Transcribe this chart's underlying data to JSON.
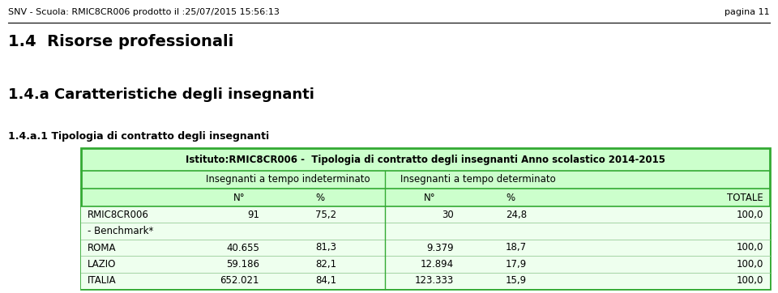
{
  "header_line": "SNV - Scuola: RMIC8CR006 prodotto il :25/07/2015 15:56:13",
  "page_label": "pagina 11",
  "section_title": "1.4  Risorse professionali",
  "subsection_title": "1.4.a Caratteristiche degli insegnanti",
  "sub_subsection_title": "1.4.a.1 Tipologia di contratto degli insegnanti",
  "table_title": "Istituto:RMIC8CR006 -  Tipologia di contratto degli insegnanti Anno scolastico 2014-2015",
  "col_group1": "Insegnanti a tempo indeterminato",
  "col_group2": "Insegnanti a tempo determinato",
  "col_headers": [
    "N°",
    "%",
    "N°",
    "%",
    "TOTALE"
  ],
  "rows": [
    {
      "label": "RMIC8CR006",
      "vals": [
        "91",
        "75,2",
        "30",
        "24,8",
        "100,0"
      ]
    },
    {
      "label": "- Benchmark*",
      "vals": [
        "",
        "",
        "",
        "",
        ""
      ]
    },
    {
      "label": "ROMA",
      "vals": [
        "40.655",
        "81,3",
        "9.379",
        "18,7",
        "100,0"
      ]
    },
    {
      "label": "LAZIO",
      "vals": [
        "59.186",
        "82,1",
        "12.894",
        "17,9",
        "100,0"
      ]
    },
    {
      "label": "ITALIA",
      "vals": [
        "652.021",
        "84,1",
        "123.333",
        "15,9",
        "100,0"
      ]
    }
  ],
  "bg_color": "#ffffff",
  "table_header_bg": "#ccffcc",
  "table_row_bg": "#eeffee",
  "table_border_color": "#33aa33",
  "header_fs": 8.0,
  "section_fs": 14,
  "subsection_fs": 13,
  "subsubsection_fs": 9,
  "table_fs": 8.5,
  "fig_width": 9.6,
  "fig_height": 3.62,
  "dpi": 100
}
